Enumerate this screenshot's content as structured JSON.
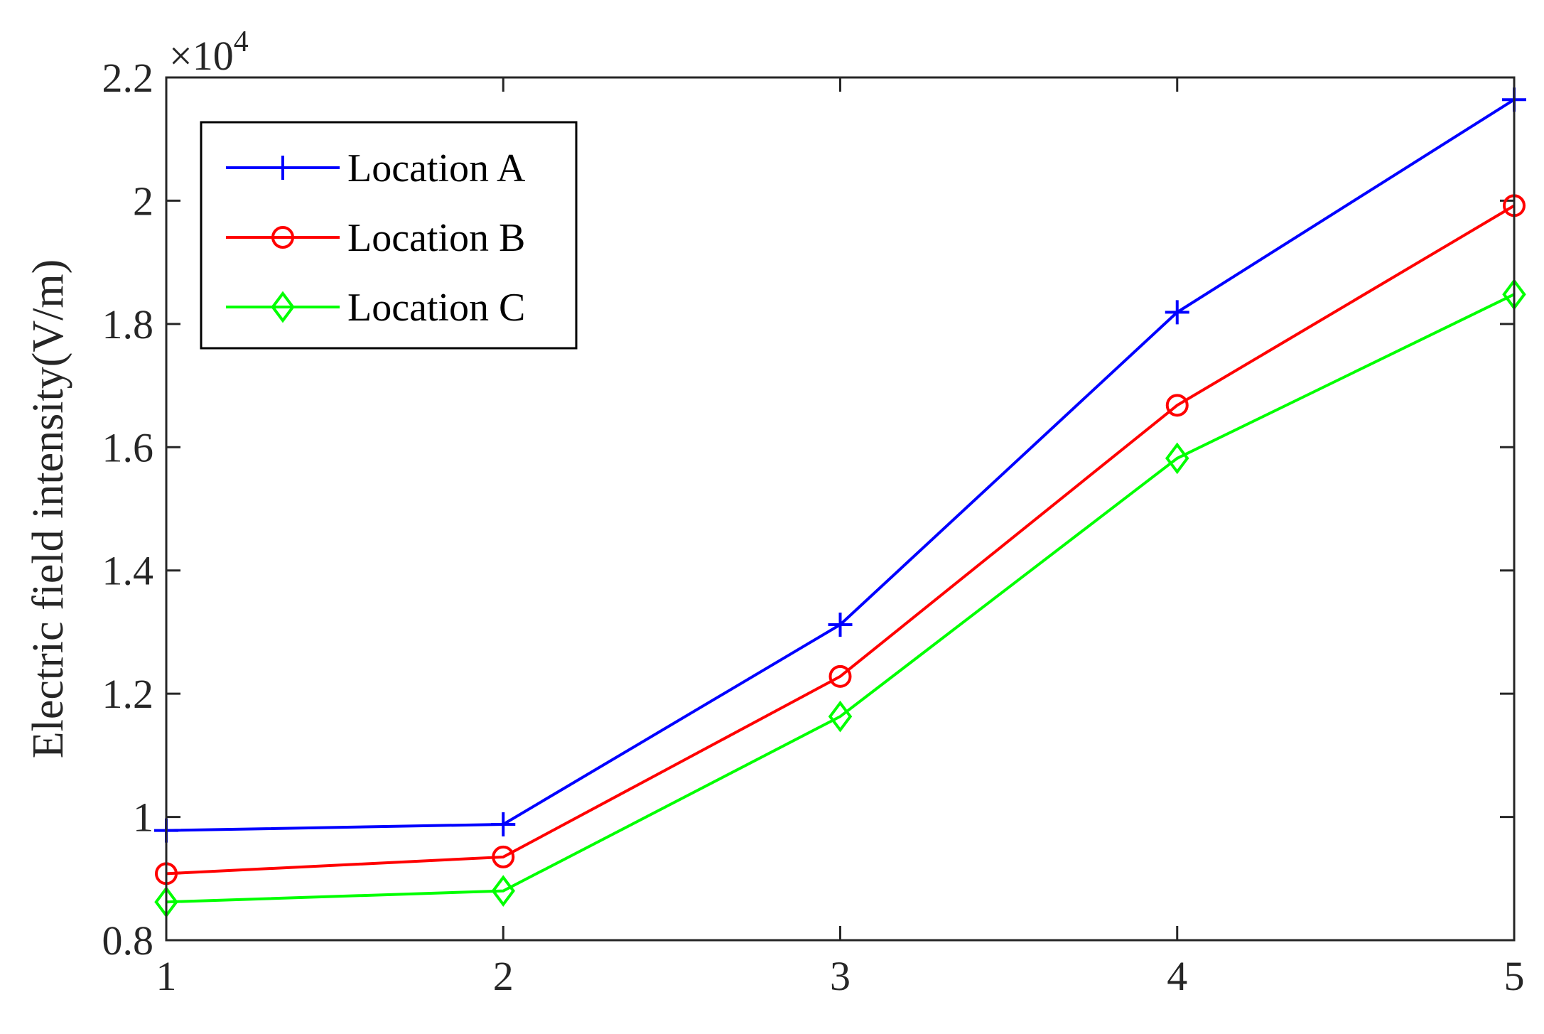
{
  "chart_data": {
    "type": "line",
    "title": "",
    "xlabel": "",
    "ylabel": "Electric field intensity(V/m)",
    "y_multiplier": {
      "base": "×10",
      "exponent": "4"
    },
    "xlim": [
      1,
      5
    ],
    "ylim": [
      0.8,
      2.2
    ],
    "x": [
      1,
      2,
      3,
      4,
      5
    ],
    "xticks": [
      "1",
      "2",
      "3",
      "4",
      "5"
    ],
    "yticks": [
      0.8,
      1.0,
      1.2,
      1.4,
      1.6,
      1.8,
      2.0,
      2.2
    ],
    "ytick_labels": [
      "0.8",
      "1",
      "1.2",
      "1.4",
      "1.6",
      "1.8",
      "2",
      "2.2"
    ],
    "grid": false,
    "legend_position": "top-left",
    "series": [
      {
        "name": "Location A",
        "color": "#0000ff",
        "marker": "plus",
        "values": [
          0.978,
          0.988,
          1.312,
          1.819,
          2.164
        ]
      },
      {
        "name": "Location B",
        "color": "#ff0000",
        "marker": "circle",
        "values": [
          0.908,
          0.935,
          1.228,
          1.668,
          1.992
        ]
      },
      {
        "name": "Location C",
        "color": "#00ff00",
        "marker": "diamond",
        "values": [
          0.862,
          0.88,
          1.163,
          1.582,
          1.848
        ]
      }
    ]
  }
}
